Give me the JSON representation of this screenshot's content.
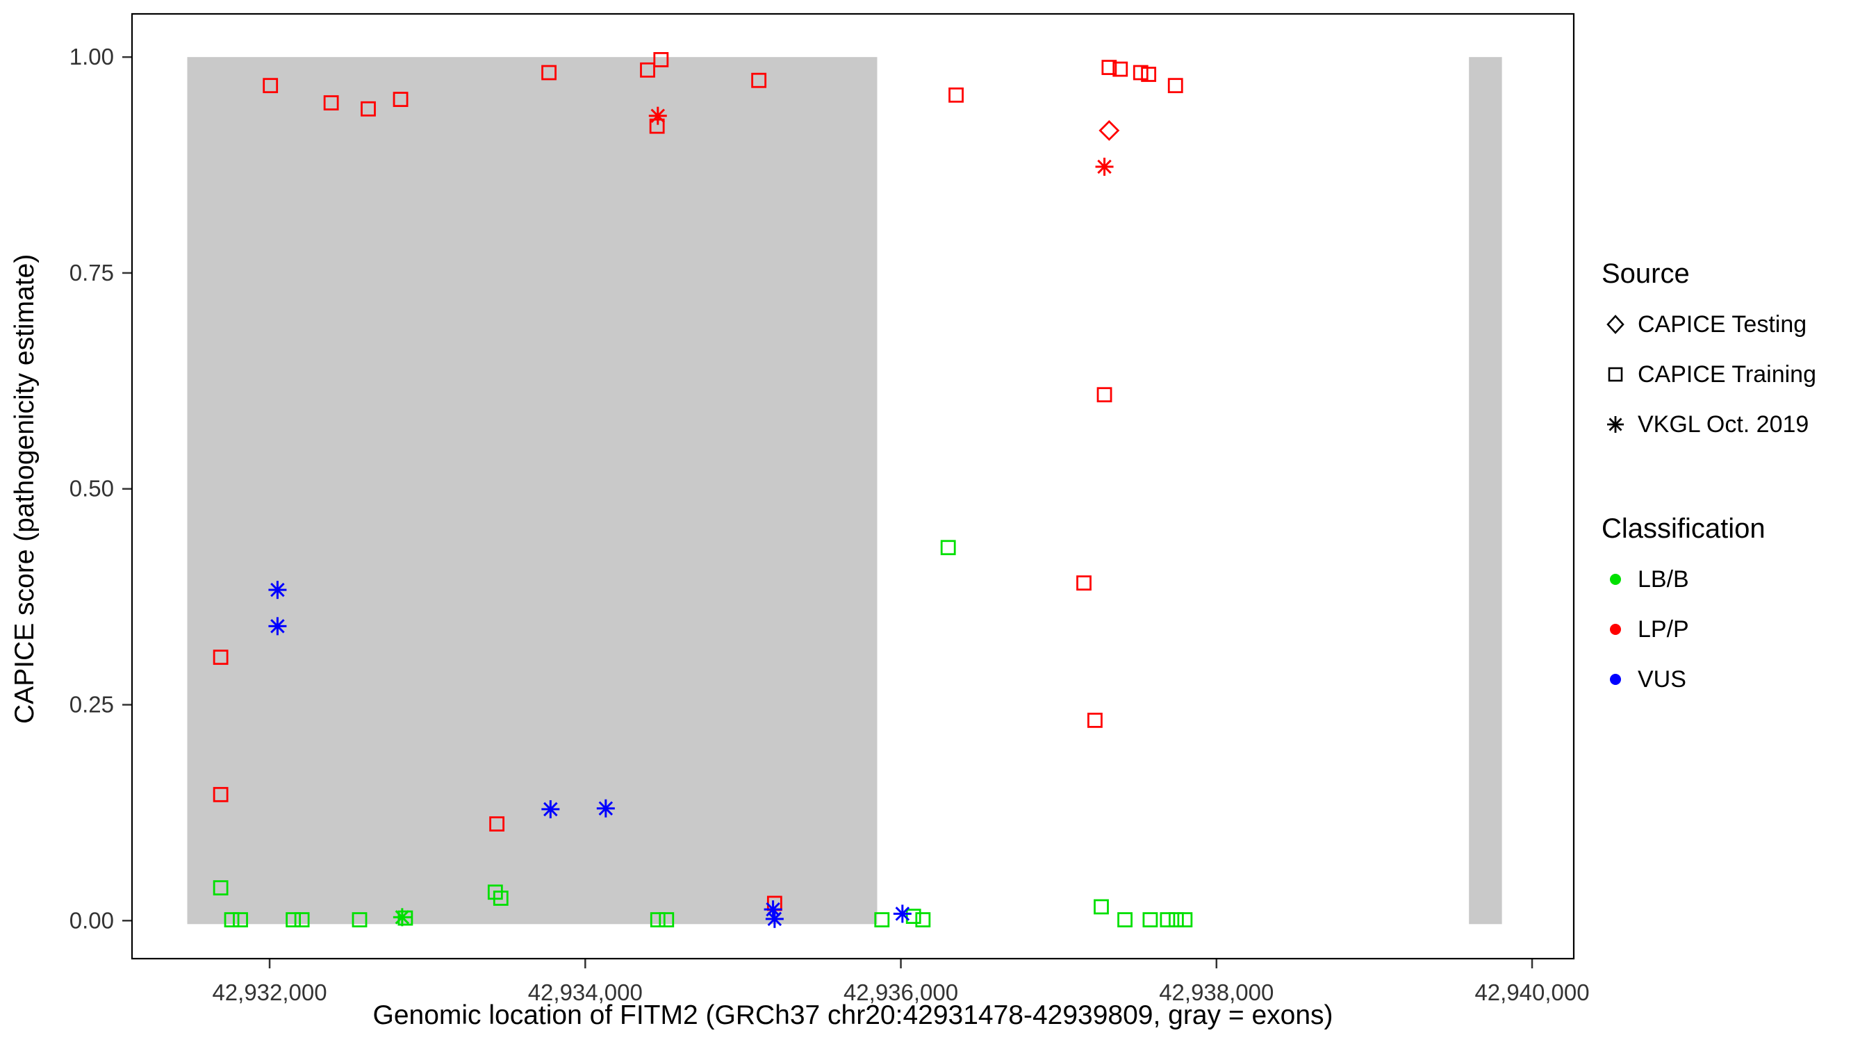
{
  "legend": {
    "source": {
      "title": "Source",
      "items": [
        {
          "label": "CAPICE Testing",
          "shape": "diamond"
        },
        {
          "label": "CAPICE Training",
          "shape": "square"
        },
        {
          "label": "VKGL Oct. 2019",
          "shape": "asterisk"
        }
      ]
    },
    "classification": {
      "title": "Classification",
      "items": [
        {
          "label": "LB/B",
          "color": "#00E000"
        },
        {
          "label": "LP/P",
          "color": "#FF0000"
        },
        {
          "label": "VUS",
          "color": "#0000FF"
        }
      ]
    }
  },
  "chart_data": {
    "type": "scatter",
    "title": "",
    "xlabel": "Genomic location of FITM2 (GRCh37 chr20:42931478-42939809, gray = exons)",
    "ylabel": "CAPICE score (pathogenicity estimate)",
    "xlim": [
      42931128,
      42940264
    ],
    "ylim": [
      -0.044,
      1.05
    ],
    "x_ticks": [
      {
        "value": 42932000,
        "label": "42,932,000"
      },
      {
        "value": 42934000,
        "label": "42,934,000"
      },
      {
        "value": 42936000,
        "label": "42,936,000"
      },
      {
        "value": 42938000,
        "label": "42,938,000"
      },
      {
        "value": 42940000,
        "label": "42,940,000"
      }
    ],
    "y_ticks": [
      {
        "value": 0.0,
        "label": "0.00"
      },
      {
        "value": 0.25,
        "label": "0.25"
      },
      {
        "value": 0.5,
        "label": "0.50"
      },
      {
        "value": 0.75,
        "label": "0.75"
      },
      {
        "value": 1.0,
        "label": "1.00"
      }
    ],
    "exons": [
      {
        "start": 42931478,
        "end": 42935850
      },
      {
        "start": 42939600,
        "end": 42939809
      }
    ],
    "exon_color": "#C9C9C9",
    "colors": {
      "LB/B": "#00E000",
      "LP/P": "#FF0000",
      "VUS": "#0000FF"
    },
    "shapes": {
      "CAPICE Testing": "diamond",
      "CAPICE Training": "square",
      "VKGL Oct. 2019": "asterisk"
    },
    "points": [
      {
        "x": 42931690,
        "y": 0.305,
        "source": "CAPICE Training",
        "classification": "LP/P"
      },
      {
        "x": 42931690,
        "y": 0.146,
        "source": "CAPICE Training",
        "classification": "LP/P"
      },
      {
        "x": 42932005,
        "y": 0.967,
        "source": "CAPICE Training",
        "classification": "LP/P"
      },
      {
        "x": 42932390,
        "y": 0.947,
        "source": "CAPICE Training",
        "classification": "LP/P"
      },
      {
        "x": 42932625,
        "y": 0.94,
        "source": "CAPICE Training",
        "classification": "LP/P"
      },
      {
        "x": 42932830,
        "y": 0.951,
        "source": "CAPICE Training",
        "classification": "LP/P"
      },
      {
        "x": 42933440,
        "y": 0.112,
        "source": "CAPICE Training",
        "classification": "LP/P"
      },
      {
        "x": 42933770,
        "y": 0.982,
        "source": "CAPICE Training",
        "classification": "LP/P"
      },
      {
        "x": 42934395,
        "y": 0.985,
        "source": "CAPICE Training",
        "classification": "LP/P"
      },
      {
        "x": 42934480,
        "y": 0.997,
        "source": "CAPICE Training",
        "classification": "LP/P"
      },
      {
        "x": 42934455,
        "y": 0.92,
        "source": "CAPICE Training",
        "classification": "LP/P"
      },
      {
        "x": 42935100,
        "y": 0.973,
        "source": "CAPICE Training",
        "classification": "LP/P"
      },
      {
        "x": 42935200,
        "y": 0.02,
        "source": "CAPICE Training",
        "classification": "LP/P"
      },
      {
        "x": 42936350,
        "y": 0.956,
        "source": "CAPICE Training",
        "classification": "LP/P"
      },
      {
        "x": 42937160,
        "y": 0.391,
        "source": "CAPICE Training",
        "classification": "LP/P"
      },
      {
        "x": 42937230,
        "y": 0.232,
        "source": "CAPICE Training",
        "classification": "LP/P"
      },
      {
        "x": 42937290,
        "y": 0.609,
        "source": "CAPICE Training",
        "classification": "LP/P"
      },
      {
        "x": 42937320,
        "y": 0.988,
        "source": "CAPICE Training",
        "classification": "LP/P"
      },
      {
        "x": 42937390,
        "y": 0.986,
        "source": "CAPICE Training",
        "classification": "LP/P"
      },
      {
        "x": 42937520,
        "y": 0.982,
        "source": "CAPICE Training",
        "classification": "LP/P"
      },
      {
        "x": 42937570,
        "y": 0.98,
        "source": "CAPICE Training",
        "classification": "LP/P"
      },
      {
        "x": 42937740,
        "y": 0.967,
        "source": "CAPICE Training",
        "classification": "LP/P"
      },
      {
        "x": 42937320,
        "y": 0.915,
        "source": "CAPICE Testing",
        "classification": "LP/P"
      },
      {
        "x": 42934460,
        "y": 0.932,
        "source": "VKGL Oct. 2019",
        "classification": "LP/P"
      },
      {
        "x": 42937290,
        "y": 0.873,
        "source": "VKGL Oct. 2019",
        "classification": "LP/P"
      },
      {
        "x": 42931690,
        "y": 0.038,
        "source": "CAPICE Training",
        "classification": "LB/B"
      },
      {
        "x": 42931760,
        "y": 0.001,
        "source": "CAPICE Training",
        "classification": "LB/B"
      },
      {
        "x": 42931815,
        "y": 0.001,
        "source": "CAPICE Training",
        "classification": "LB/B"
      },
      {
        "x": 42932150,
        "y": 0.001,
        "source": "CAPICE Training",
        "classification": "LB/B"
      },
      {
        "x": 42932205,
        "y": 0.001,
        "source": "CAPICE Training",
        "classification": "LB/B"
      },
      {
        "x": 42932570,
        "y": 0.001,
        "source": "CAPICE Training",
        "classification": "LB/B"
      },
      {
        "x": 42932860,
        "y": 0.003,
        "source": "CAPICE Training",
        "classification": "LB/B"
      },
      {
        "x": 42933430,
        "y": 0.033,
        "source": "CAPICE Training",
        "classification": "LB/B"
      },
      {
        "x": 42933465,
        "y": 0.026,
        "source": "CAPICE Training",
        "classification": "LB/B"
      },
      {
        "x": 42934460,
        "y": 0.001,
        "source": "CAPICE Training",
        "classification": "LB/B"
      },
      {
        "x": 42934515,
        "y": 0.001,
        "source": "CAPICE Training",
        "classification": "LB/B"
      },
      {
        "x": 42935880,
        "y": 0.001,
        "source": "CAPICE Training",
        "classification": "LB/B"
      },
      {
        "x": 42936080,
        "y": 0.005,
        "source": "CAPICE Training",
        "classification": "LB/B"
      },
      {
        "x": 42936140,
        "y": 0.001,
        "source": "CAPICE Training",
        "classification": "LB/B"
      },
      {
        "x": 42936300,
        "y": 0.432,
        "source": "CAPICE Training",
        "classification": "LB/B"
      },
      {
        "x": 42937270,
        "y": 0.016,
        "source": "CAPICE Training",
        "classification": "LB/B"
      },
      {
        "x": 42937420,
        "y": 0.001,
        "source": "CAPICE Training",
        "classification": "LB/B"
      },
      {
        "x": 42937580,
        "y": 0.001,
        "source": "CAPICE Training",
        "classification": "LB/B"
      },
      {
        "x": 42937690,
        "y": 0.001,
        "source": "CAPICE Training",
        "classification": "LB/B"
      },
      {
        "x": 42937745,
        "y": 0.001,
        "source": "CAPICE Training",
        "classification": "LB/B"
      },
      {
        "x": 42937800,
        "y": 0.001,
        "source": "CAPICE Training",
        "classification": "LB/B"
      },
      {
        "x": 42932840,
        "y": 0.004,
        "source": "VKGL Oct. 2019",
        "classification": "LB/B"
      },
      {
        "x": 42932050,
        "y": 0.383,
        "source": "VKGL Oct. 2019",
        "classification": "VUS"
      },
      {
        "x": 42932050,
        "y": 0.341,
        "source": "VKGL Oct. 2019",
        "classification": "VUS"
      },
      {
        "x": 42933780,
        "y": 0.129,
        "source": "VKGL Oct. 2019",
        "classification": "VUS"
      },
      {
        "x": 42934130,
        "y": 0.13,
        "source": "VKGL Oct. 2019",
        "classification": "VUS"
      },
      {
        "x": 42935190,
        "y": 0.013,
        "source": "VKGL Oct. 2019",
        "classification": "VUS"
      },
      {
        "x": 42935200,
        "y": 0.002,
        "source": "VKGL Oct. 2019",
        "classification": "VUS"
      },
      {
        "x": 42936010,
        "y": 0.008,
        "source": "VKGL Oct. 2019",
        "classification": "VUS"
      }
    ]
  }
}
